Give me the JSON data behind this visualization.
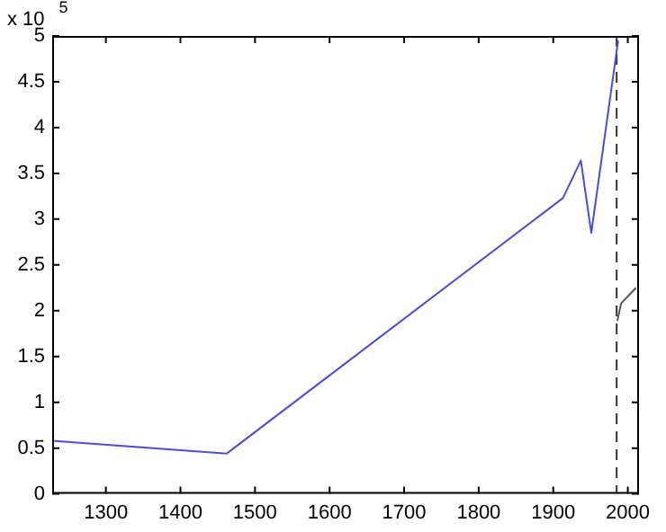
{
  "chart_data": {
    "type": "line",
    "series": [
      {
        "color": "#4b4bdc",
        "x": [
          1228,
          1462,
          1913,
          1937,
          1951,
          1987
        ],
        "values": [
          0.58,
          0.44,
          3.23,
          3.64,
          2.85,
          4.95
        ]
      },
      {
        "color": "#555555",
        "x": [
          1986,
          1991,
          2011
        ],
        "values": [
          1.89,
          2.08,
          2.25
        ]
      }
    ],
    "xlim": [
      1228,
      2015
    ],
    "xticks": [
      1300,
      1400,
      1500,
      1600,
      1700,
      1800,
      1900,
      2000
    ],
    "ylim": [
      0,
      5
    ],
    "yticks": [
      0,
      0.5,
      1,
      1.5,
      2,
      2.5,
      3,
      3.5,
      4,
      4.5,
      5
    ],
    "ref_lines": [
      {
        "axis": "x",
        "value": 1985,
        "color": "#333333",
        "line_style": "dashed"
      }
    ],
    "annotations": [
      "x 10$^{5}$"
    ],
    "grid": false,
    "legend": false,
    "marker": "none"
  }
}
